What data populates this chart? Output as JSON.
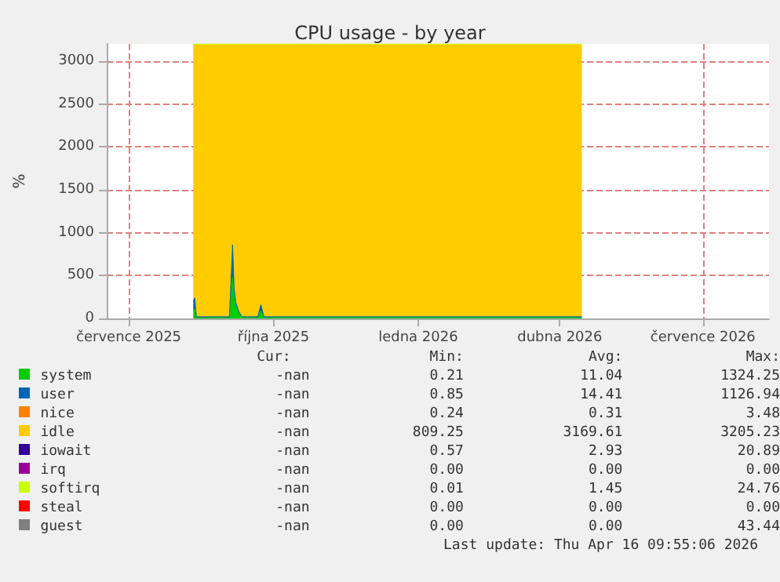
{
  "chart_data": {
    "type": "area",
    "stacked": true,
    "title": "CPU usage - by year",
    "ylabel": "%",
    "x": [
      "2025-08-11",
      "2025-08-12",
      "2025-08-13",
      "2025-08-14",
      "2025-09-03",
      "2025-09-05",
      "2025-09-06",
      "2025-09-07",
      "2025-09-09",
      "2025-09-11",
      "2025-09-21",
      "2025-09-23",
      "2025-09-25",
      "2025-11-15",
      "2026-01-01",
      "2026-04-15"
    ],
    "series": [
      {
        "name": "system",
        "color": "#00cc00",
        "values": [
          100,
          110,
          10,
          10,
          10,
          480,
          250,
          150,
          60,
          10,
          10,
          90,
          10,
          10,
          10,
          10
        ]
      },
      {
        "name": "user",
        "color": "#0066b3",
        "values": [
          100,
          130,
          10,
          10,
          10,
          380,
          100,
          40,
          20,
          10,
          10,
          70,
          10,
          10,
          10,
          10
        ]
      },
      {
        "name": "nice",
        "color": "#ff8000",
        "values": [
          null,
          null,
          null,
          null,
          null,
          null,
          null,
          null,
          null,
          null,
          null,
          null,
          null,
          null,
          null,
          null
        ]
      },
      {
        "name": "idle",
        "color": "#ffcc00",
        "values": [
          2990,
          2950,
          3170,
          3170,
          3170,
          2330,
          2840,
          3000,
          3110,
          3170,
          3170,
          3030,
          3170,
          3170,
          3170,
          3170
        ]
      },
      {
        "name": "iowait",
        "color": "#330099",
        "values": [
          null,
          null,
          null,
          null,
          null,
          null,
          null,
          null,
          null,
          null,
          null,
          null,
          null,
          null,
          null,
          null
        ]
      },
      {
        "name": "irq",
        "color": "#990099",
        "values": [
          null,
          null,
          null,
          null,
          null,
          null,
          null,
          null,
          null,
          null,
          null,
          null,
          null,
          null,
          null,
          null
        ]
      },
      {
        "name": "softirq",
        "color": "#ccff00",
        "values": [
          10,
          10,
          10,
          10,
          10,
          10,
          10,
          10,
          10,
          10,
          10,
          10,
          10,
          10,
          10,
          10
        ]
      },
      {
        "name": "steal",
        "color": "#ff0000",
        "values": [
          null,
          null,
          null,
          null,
          null,
          null,
          null,
          null,
          null,
          null,
          null,
          null,
          null,
          null,
          null,
          null
        ]
      },
      {
        "name": "guest",
        "color": "#808080",
        "values": [
          null,
          null,
          null,
          null,
          null,
          null,
          null,
          null,
          null,
          null,
          null,
          null,
          null,
          null,
          null,
          null
        ]
      }
    ],
    "xlim": [
      "2025-06-17",
      "2026-08-12"
    ],
    "xticks": [
      {
        "value": "2025-07-01",
        "label": "července 2025"
      },
      {
        "value": "2025-10-01",
        "label": "října 2025"
      },
      {
        "value": "2026-01-01",
        "label": "ledna 2026"
      },
      {
        "value": "2026-04-01",
        "label": "dubna 2026"
      },
      {
        "value": "2026-07-01",
        "label": "července 2026"
      }
    ],
    "ylim": [
      0,
      3200
    ],
    "yticks": [
      0,
      500,
      1000,
      1500,
      2000,
      2500,
      3000
    ],
    "grid": true,
    "legend": "bottom",
    "annotations": [
      "Cur:",
      "Min:",
      "Avg:",
      "Max:",
      "-nan",
      "0.21",
      "11.04",
      "1324.25",
      "-nan",
      "0.85",
      "14.41",
      "1126.94",
      "-nan",
      "0.24",
      "0.31",
      "3.48",
      "-nan",
      "809.25",
      "3169.61",
      "3205.23",
      "-nan",
      "0.57",
      "2.93",
      "20.89",
      "-nan",
      "0.00",
      "0.00",
      "0.00",
      "-nan",
      "0.01",
      "1.45",
      "24.76",
      "-nan",
      "0.00",
      "0.00",
      "0.00",
      "-nan",
      "0.00",
      "0.00",
      "43.44",
      "Last update: Thu Apr 16 09:55:06 2026"
    ]
  }
}
